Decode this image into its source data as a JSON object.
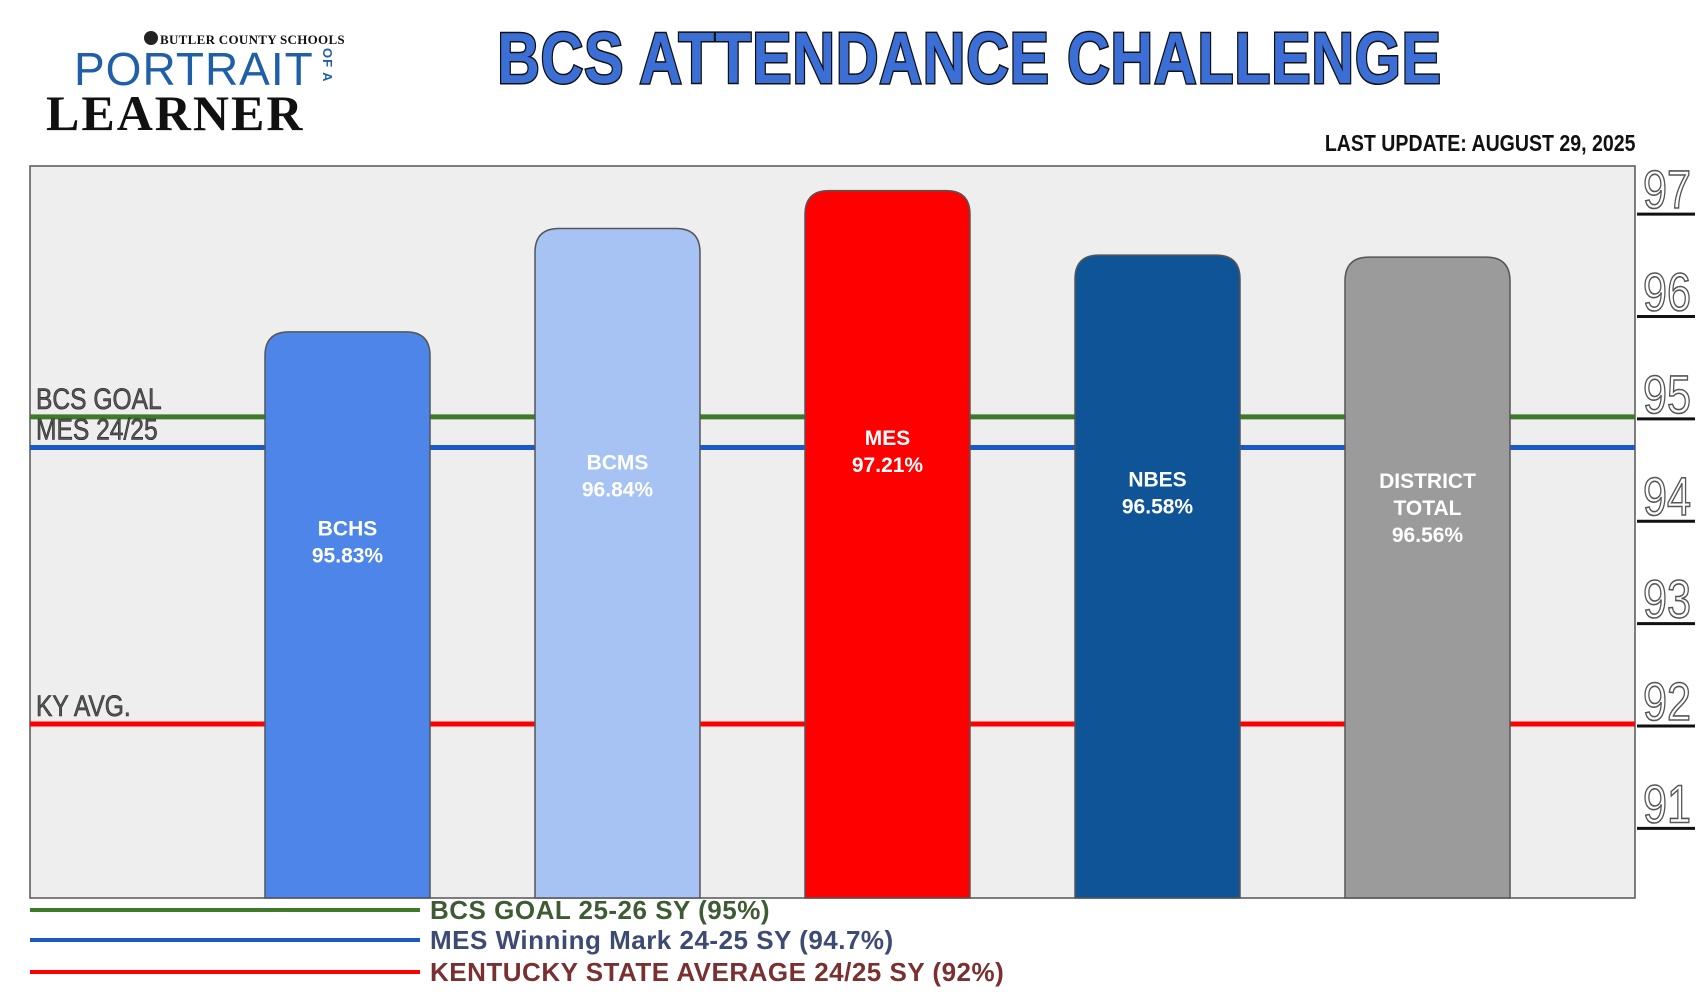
{
  "header": {
    "logo_org": "BUTLER COUNTY SCHOOLS",
    "logo_word1": "PORTRAIT",
    "logo_ofa": "OF A",
    "logo_word2": "LEARNER",
    "title": "BCS ATTENDANCE CHALLENGE",
    "last_update": "LAST UPDATE: AUGUST 29, 2025"
  },
  "colors": {
    "goal": "#3e7a2a",
    "mes_mark": "#1b58c8",
    "ky_avg": "#ff0000",
    "plot_bg": "#eeeeee"
  },
  "chart_data": {
    "type": "bar",
    "categories": [
      "BCHS",
      "BCMS",
      "MES",
      "NBES",
      "DISTRICT TOTAL"
    ],
    "values": [
      95.83,
      96.84,
      97.21,
      96.58,
      96.56
    ],
    "value_labels": [
      "95.83%",
      "96.84%",
      "97.21%",
      "96.58%",
      "96.56%"
    ],
    "bar_colors": [
      "#4d86e8",
      "#a6c3f4",
      "#ff0000",
      "#0f5496",
      "#9b9b9b"
    ],
    "ylim": [
      90.3,
      97.45
    ],
    "y_ticks": [
      97,
      96,
      95,
      94,
      93,
      92,
      91
    ],
    "y_axis_side": "right",
    "reference_lines": [
      {
        "label": "BCS GOAL",
        "value": 95,
        "color": "#3e7a2a"
      },
      {
        "label": "MES 24/25",
        "value": 94.7,
        "color": "#1b58c8"
      },
      {
        "label": "KY AVG.",
        "value": 92,
        "color": "#ff0000"
      }
    ],
    "legend": [
      {
        "text": "BCS GOAL 25-26 SY  (95%)",
        "color": "#3e7a2a",
        "text_color": "#3e5b33"
      },
      {
        "text": "MES Winning Mark 24-25 SY  (94.7%)",
        "color": "#1b58c8",
        "text_color": "#3d4a73"
      },
      {
        "text": "KENTUCKY STATE AVERAGE 24/25 SY  (92%)",
        "color": "#ff0000",
        "text_color": "#7a3030"
      }
    ],
    "grid": false
  }
}
